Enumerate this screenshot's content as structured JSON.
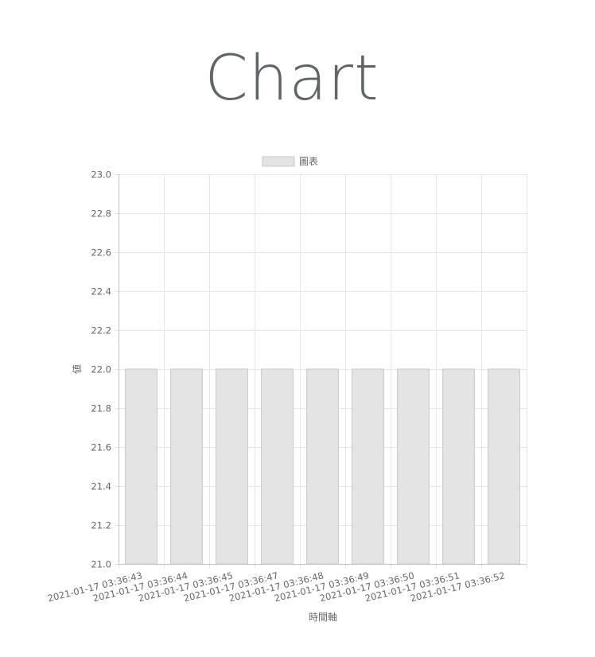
{
  "page": {
    "title": "Chart"
  },
  "chart_data": {
    "type": "bar",
    "title": "",
    "xlabel": "時間軸",
    "ylabel": "値",
    "ylim": [
      21.0,
      23.0
    ],
    "y_ticks": [
      "21.0",
      "21.2",
      "21.4",
      "21.6",
      "21.8",
      "22.0",
      "22.2",
      "22.4",
      "22.6",
      "22.8",
      "23.0"
    ],
    "categories": [
      "2021-01-17 03:36:43",
      "2021-01-17 03:36:44",
      "2021-01-17 03:36:45",
      "2021-01-17 03:36:47",
      "2021-01-17 03:36:48",
      "2021-01-17 03:36:49",
      "2021-01-17 03:36:50",
      "2021-01-17 03:36:51",
      "2021-01-17 03:36:52"
    ],
    "series": [
      {
        "name": "圖表",
        "values": [
          22,
          22,
          22,
          22,
          22,
          22,
          22,
          22,
          22
        ],
        "fill_color": "#e4e4e4",
        "border_color": "#c9c9c9"
      }
    ],
    "grid": true,
    "legend_position": "top-center",
    "grid_color": "#e6e6e6",
    "axis_color": "#c4c4c4"
  }
}
